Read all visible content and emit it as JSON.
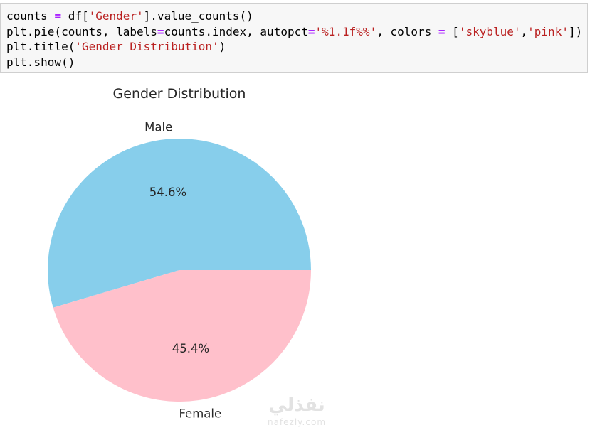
{
  "code_cell": {
    "lines": [
      [
        {
          "t": "counts ",
          "k": "plain"
        },
        {
          "t": "=",
          "k": "op"
        },
        {
          "t": " df[",
          "k": "plain"
        },
        {
          "t": "'Gender'",
          "k": "str"
        },
        {
          "t": "].value_counts()",
          "k": "plain"
        }
      ],
      [
        {
          "t": "plt.pie(counts, labels",
          "k": "plain"
        },
        {
          "t": "=",
          "k": "op"
        },
        {
          "t": "counts.index, autopct",
          "k": "plain"
        },
        {
          "t": "=",
          "k": "op"
        },
        {
          "t": "'%1.1f%%'",
          "k": "str"
        },
        {
          "t": ", colors ",
          "k": "plain"
        },
        {
          "t": "=",
          "k": "op"
        },
        {
          "t": " [",
          "k": "plain"
        },
        {
          "t": "'skyblue'",
          "k": "str"
        },
        {
          "t": ",",
          "k": "plain"
        },
        {
          "t": "'pink'",
          "k": "str"
        },
        {
          "t": "])",
          "k": "plain"
        }
      ],
      [
        {
          "t": "plt.title(",
          "k": "plain"
        },
        {
          "t": "'Gender Distribution'",
          "k": "str"
        },
        {
          "t": ")",
          "k": "plain"
        }
      ],
      [
        {
          "t": "plt.show()",
          "k": "plain"
        }
      ]
    ]
  },
  "chart_data": {
    "type": "pie",
    "title": "Gender Distribution",
    "categories": [
      "Male",
      "Female"
    ],
    "values": [
      54.6,
      45.4
    ],
    "value_labels": [
      "54.6%",
      "45.4%"
    ],
    "colors": [
      "#87ceeb",
      "#ffc0cb"
    ],
    "start_angle_deg": 0,
    "direction": "counterclockwise"
  },
  "watermark": {
    "arabic": "نفذلي",
    "latin": "nafezly.com"
  }
}
